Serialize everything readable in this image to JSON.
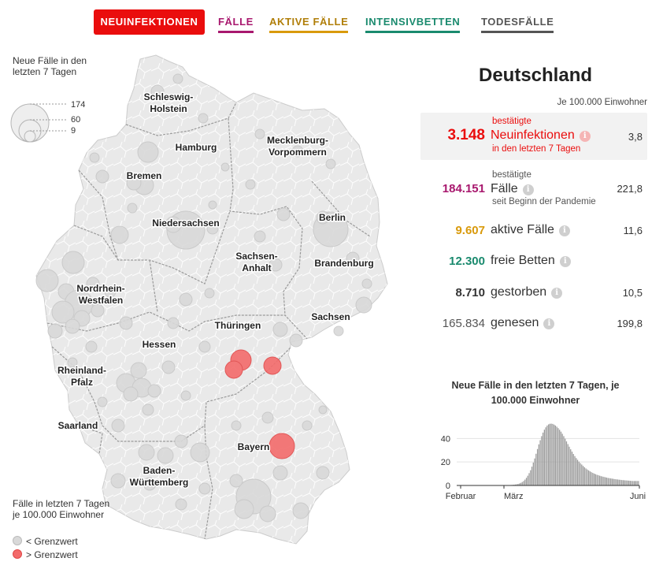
{
  "tabs": [
    {
      "label": "NEUINFEKTIONEN",
      "color": "#ea0d0d",
      "active": true
    },
    {
      "label": "FÄLLE",
      "color": "#a8186e",
      "active": false
    },
    {
      "label": "AKTIVE FÄLLE",
      "color": "#d99a0c",
      "active": false
    },
    {
      "label": "INTENSIVBETTEN",
      "color": "#1a8a6e",
      "active": false
    },
    {
      "label": "TODESFÄLLE",
      "color": "#555555",
      "active": false
    }
  ],
  "map": {
    "size_legend": {
      "title": "Neue Fälle in den letzten 7 Tagen",
      "values": [
        "174",
        "60",
        "9"
      ]
    },
    "state_labels": [
      {
        "name": "schleswig-holstein",
        "lines": [
          "Schleswig-",
          "Holstein"
        ]
      },
      {
        "name": "mecklenburg-vorpommern",
        "lines": [
          "Mecklenburg-",
          "Vorpommern"
        ]
      },
      {
        "name": "hamburg",
        "lines": [
          "Hamburg"
        ]
      },
      {
        "name": "bremen",
        "lines": [
          "Bremen"
        ]
      },
      {
        "name": "niedersachsen",
        "lines": [
          "Niedersachsen"
        ]
      },
      {
        "name": "berlin",
        "lines": [
          "Berlin"
        ]
      },
      {
        "name": "sachsen-anhalt",
        "lines": [
          "Sachsen-",
          "Anhalt"
        ]
      },
      {
        "name": "brandenburg",
        "lines": [
          "Brandenburg"
        ]
      },
      {
        "name": "nordrhein-westfalen",
        "lines": [
          "Nordrhein-",
          "Westfalen"
        ]
      },
      {
        "name": "sachsen",
        "lines": [
          "Sachsen"
        ]
      },
      {
        "name": "thueringen",
        "lines": [
          "Thüringen"
        ]
      },
      {
        "name": "hessen",
        "lines": [
          "Hessen"
        ]
      },
      {
        "name": "rheinland-pfalz",
        "lines": [
          "Rheinland-",
          "Pfalz"
        ]
      },
      {
        "name": "saarland",
        "lines": [
          "Saarland"
        ]
      },
      {
        "name": "bayern",
        "lines": [
          "Bayern"
        ]
      },
      {
        "name": "baden-wuerttemberg",
        "lines": [
          "Baden-",
          "Württemberg"
        ]
      }
    ],
    "color_legend": {
      "title": "Fälle in letzten 7 Tagen je 100.000 Einwohner",
      "below": "< Grenzwert",
      "above": "> Grenzwert",
      "below_color": "#d9d9d9",
      "above_color": "#f36b6b"
    }
  },
  "panel": {
    "country": "Deutschland",
    "per100k_note": "Je 100.000 Einwohner",
    "stats": [
      {
        "key": "neuinfektionen",
        "value": "3.148",
        "color": "#ea0d0d",
        "sup": "bestätigte",
        "label": "Neuinfektionen",
        "sub": "in den letzten 7 Tagen",
        "rate": "3,8"
      },
      {
        "key": "faelle",
        "value": "184.151",
        "color": "#a8186e",
        "sup": "bestätigte",
        "label": "Fälle",
        "sub": "seit Beginn der Pandemie",
        "rate": "221,8"
      },
      {
        "key": "aktive",
        "value": "9.607",
        "color": "#d99a0c",
        "label": "aktive Fälle",
        "rate": "11,6"
      },
      {
        "key": "betten",
        "value": "12.300",
        "color": "#1a8a6e",
        "label": "freie Betten"
      },
      {
        "key": "gestorben",
        "value": "8.710",
        "color": "#333333",
        "label": "gestorben",
        "rate": "10,5"
      },
      {
        "key": "genesen",
        "value": "165.834",
        "color": "#555555",
        "label": "genesen",
        "rate": "199,8"
      }
    ]
  },
  "chart_data": {
    "type": "bar",
    "title": "Neue Fälle in den letzten 7 Tagen, je 100.000 Einwohner",
    "xlabel": "",
    "ylabel": "",
    "x_tick_labels": [
      "Februar",
      "März",
      "Juni"
    ],
    "y_tick_labels": [
      "0",
      "20",
      "40"
    ],
    "ylim": [
      0,
      55
    ],
    "values": [
      0,
      0,
      0,
      0,
      0,
      0,
      0,
      0,
      0,
      0,
      0,
      0,
      0,
      0,
      0,
      0,
      0,
      0,
      0,
      0,
      0,
      0,
      0,
      0,
      0,
      0,
      0,
      0,
      0,
      0.1,
      0.1,
      0.1,
      0.1,
      0.1,
      0.2,
      0.2,
      0.2,
      0.3,
      0.3,
      0.4,
      0.5,
      0.6,
      0.8,
      1,
      1.3,
      1.7,
      2.2,
      2.9,
      3.8,
      5,
      6.5,
      8.3,
      10.5,
      13,
      16,
      19.5,
      23,
      27,
      31,
      35,
      38.5,
      42,
      45,
      47.5,
      49.5,
      51,
      52,
      52.5,
      52.6,
      52.4,
      51.8,
      51,
      50,
      48.8,
      47.4,
      45.8,
      44,
      42,
      39.8,
      37.5,
      35.2,
      33,
      30.8,
      28.8,
      26.8,
      25,
      23.3,
      21.8,
      20.3,
      19,
      17.8,
      16.6,
      15.5,
      14.5,
      13.6,
      12.8,
      12,
      11.3,
      10.7,
      10.1,
      9.6,
      9.1,
      8.7,
      8.3,
      7.9,
      7.6,
      7.3,
      7,
      6.7,
      6.4,
      6.2,
      6,
      5.8,
      5.6,
      5.4,
      5.2,
      5.1,
      4.9,
      4.8,
      4.6,
      4.5,
      4.4,
      4.3,
      4.2,
      4.1,
      4,
      3.9,
      3.8,
      3.8,
      3.8,
      3.8,
      3.8
    ]
  }
}
